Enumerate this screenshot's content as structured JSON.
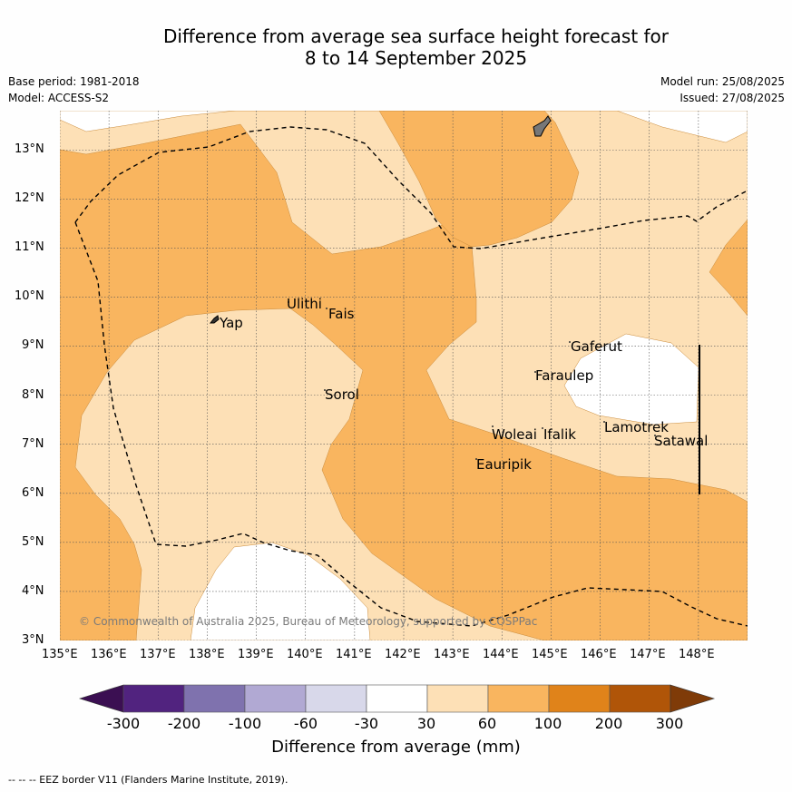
{
  "title": {
    "line1": "Difference from average sea surface height forecast for",
    "line2": "8 to 14 September 2025"
  },
  "meta": {
    "base_period": "Base period: 1981-2018",
    "model": "Model: ACCESS-S2",
    "model_run": "Model run: 25/08/2025",
    "issued": "Issued: 27/08/2025"
  },
  "axes": {
    "x_ticks": [
      "135°E",
      "136°E",
      "137°E",
      "138°E",
      "139°E",
      "140°E",
      "141°E",
      "142°E",
      "143°E",
      "144°E",
      "145°E",
      "146°E",
      "147°E",
      "148°E"
    ],
    "y_ticks": [
      "3°N",
      "4°N",
      "5°N",
      "6°N",
      "7°N",
      "8°N",
      "9°N",
      "10°N",
      "11°N",
      "12°N",
      "13°N"
    ],
    "lon_range": [
      135,
      149
    ],
    "lat_range": [
      3,
      13.8
    ]
  },
  "places": {
    "yap": "Yap",
    "ulithi": "Ulithi",
    "fais": "Fais",
    "sorol": "Sorol",
    "gaferut": "Gaferut",
    "faraulep": "Faraulep",
    "woleai": "Woleai",
    "ifalik": "Ifalik",
    "lamotrek": "Lamotrek",
    "satawal": "Satawal",
    "eauripik": "Eauripik"
  },
  "copyright": "© Commonwealth of Australia 2025, Bureau of Meteorology, supported by COSPPac",
  "colorbar": {
    "labels": [
      "-300",
      "-200",
      "-100",
      "-60",
      "-30",
      "30",
      "60",
      "100",
      "200",
      "300"
    ],
    "colors": [
      "#3b0f52",
      "#51237f",
      "#7f72ae",
      "#b1a9d3",
      "#d8d8ea",
      "#ffffff",
      "#fde0b6",
      "#f9b55f",
      "#e0831a",
      "#b05508",
      "#7f3b08"
    ],
    "title": "Difference from average (mm)"
  },
  "footer": "--  --  -- EEZ border V11 (Flanders Marine Institute, 2019).",
  "colors": {
    "c30_60": "#fde0b6",
    "c60_100": "#f9b55f",
    "neutral": "#ffffff",
    "land": "#777777"
  }
}
